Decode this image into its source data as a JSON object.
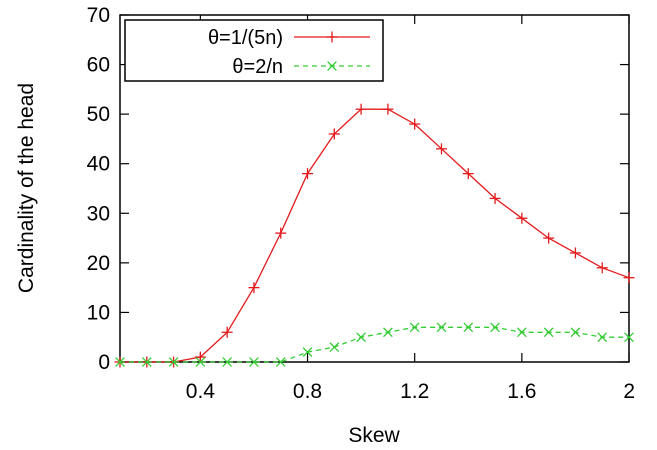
{
  "chart_data": {
    "type": "line",
    "xlabel": "Skew",
    "ylabel": "Cardinality of the head",
    "xlim": [
      0.1,
      2.0
    ],
    "ylim": [
      0,
      70
    ],
    "xticks": [
      "0.4",
      "0.8",
      "1.2",
      "1.6",
      "2"
    ],
    "xtick_values": [
      0.4,
      0.8,
      1.2,
      1.6,
      2.0
    ],
    "yticks": [
      "0",
      "10",
      "20",
      "30",
      "40",
      "50",
      "60",
      "70"
    ],
    "ytick_values": [
      0,
      10,
      20,
      30,
      40,
      50,
      60,
      70
    ],
    "grid": false,
    "legend_position": "top-left",
    "x": [
      0.1,
      0.2,
      0.3,
      0.4,
      0.5,
      0.6,
      0.7,
      0.8,
      0.9,
      1.0,
      1.1,
      1.2,
      1.3,
      1.4,
      1.5,
      1.6,
      1.7,
      1.8,
      1.9,
      2.0
    ],
    "series": [
      {
        "name": "θ=1/(5n)",
        "color": "#e41a1c",
        "line": "solid",
        "marker": "plus",
        "values": [
          0,
          0,
          0,
          1,
          6,
          15,
          26,
          38,
          46,
          51,
          51,
          48,
          43,
          38,
          33,
          29,
          25,
          22,
          19,
          17
        ]
      },
      {
        "name": "θ=2/n",
        "color": "#33cc33",
        "line": "dashed",
        "marker": "cross",
        "values": [
          0,
          0,
          0,
          0,
          0,
          0,
          0,
          2,
          3,
          5,
          6,
          7,
          7,
          7,
          7,
          6,
          6,
          6,
          5,
          5
        ]
      }
    ]
  }
}
